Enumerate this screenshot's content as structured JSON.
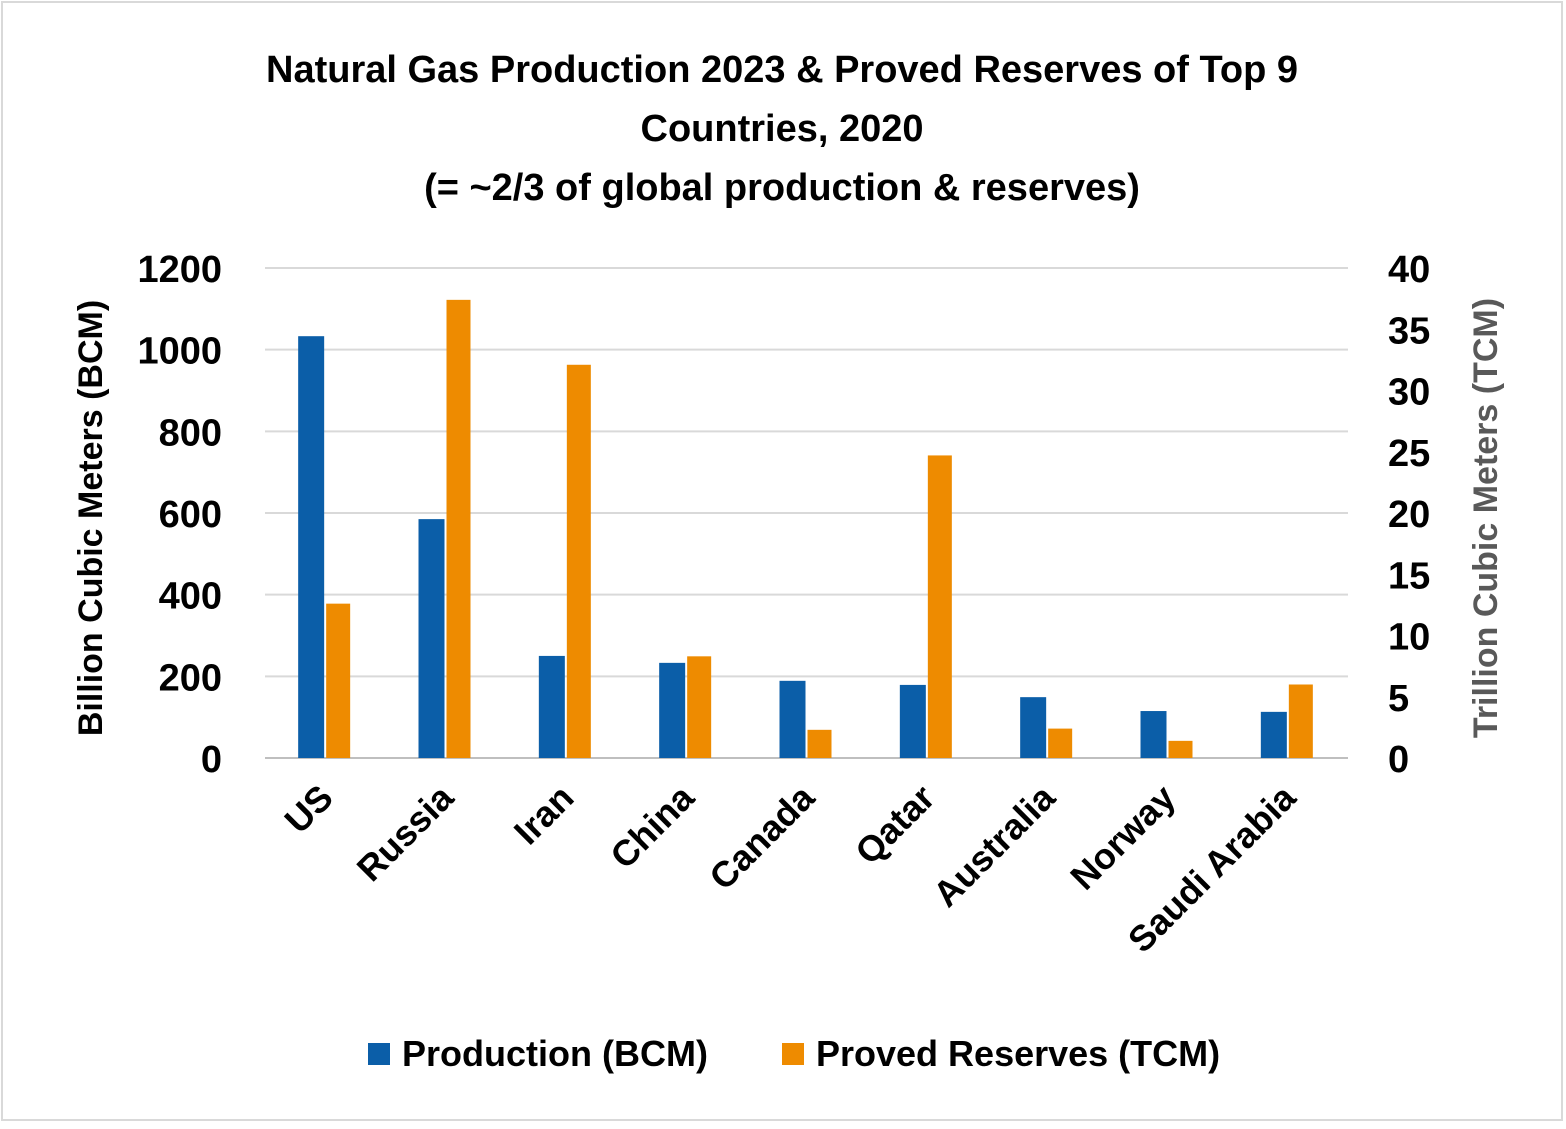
{
  "chart_data": {
    "type": "bar",
    "title": [
      "Natural Gas Production 2023 & Proved Reserves of Top 9",
      "Countries, 2020",
      "(= ~2/3 of global production & reserves)"
    ],
    "categories": [
      "US",
      "Russia",
      "Iran",
      "China",
      "Canada",
      "Qatar",
      "Australia",
      "Norway",
      "Saudi Arabia"
    ],
    "series": [
      {
        "name": "Production (BCM)",
        "axis": "left",
        "color": "#0b5ea8",
        "values": [
          1033,
          585,
          250,
          233,
          189,
          179,
          149,
          115,
          113
        ]
      },
      {
        "name": "Proved Reserves (TCM)",
        "axis": "right",
        "color": "#ee8b00",
        "values": [
          12.6,
          37.4,
          32.1,
          8.3,
          2.3,
          24.7,
          2.4,
          1.4,
          6.0
        ]
      }
    ],
    "ylabel": "Billion Cubic Meters (BCM)",
    "y2label": "Trillion Cubic Meters (TCM)",
    "ylim": [
      0,
      1200
    ],
    "y2lim": [
      0,
      40
    ],
    "yticks": [
      0,
      200,
      400,
      600,
      800,
      1000,
      1200
    ],
    "y2ticks": [
      0,
      5,
      10,
      15,
      20,
      25,
      30,
      35,
      40
    ],
    "grid": true,
    "legend": "bottom"
  }
}
